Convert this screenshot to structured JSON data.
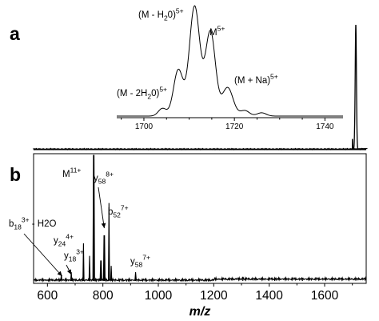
{
  "chart_data": [
    {
      "panel": "a",
      "type": "line",
      "xlim": [
        550,
        1750
      ],
      "peaks": [
        {
          "x": 1700,
          "height": 0.08,
          "width": 1.0
        },
        {
          "x": 1708,
          "height": 0.04,
          "width": 1.0
        },
        {
          "x": 1712.5,
          "height": 1.0,
          "width": 2.2
        }
      ],
      "inset": {
        "xlim": [
          1694,
          1744
        ],
        "xticks": [
          1700,
          1720,
          1740
        ],
        "peaks": [
          {
            "x": 1704.1,
            "height": 0.07,
            "width": 0.9
          },
          {
            "x": 1707.6,
            "height": 0.42,
            "width": 1.05
          },
          {
            "x": 1711.2,
            "height": 1.0,
            "width": 1.15
          },
          {
            "x": 1714.7,
            "height": 0.77,
            "width": 1.1
          },
          {
            "x": 1718.5,
            "height": 0.26,
            "width": 1.2
          },
          {
            "x": 1722.3,
            "height": 0.05,
            "width": 1.0
          },
          {
            "x": 1726.0,
            "height": 0.03,
            "width": 1.0
          }
        ],
        "annotations": [
          {
            "base": "(M - 2H",
            "sub": "2",
            "mid": "0)",
            "sup": "5+",
            "x": 1704.1
          },
          {
            "base": "(M - H",
            "sub": "2",
            "mid": "0)",
            "sup": "5+",
            "x": 1707.6
          },
          {
            "base": "M",
            "sub": "",
            "mid": "",
            "sup": "5+",
            "x": 1714.7
          },
          {
            "base": "(M + Na)",
            "sub": "",
            "mid": "",
            "sup": "5+",
            "x": 1718.5
          }
        ]
      }
    },
    {
      "panel": "b",
      "type": "line",
      "xlim": [
        550,
        1750
      ],
      "xticks": [
        600,
        800,
        1000,
        1200,
        1400,
        1600
      ],
      "xlabel": "m/z",
      "peaks": [
        {
          "x": 650,
          "height": 0.05
        },
        {
          "x": 686,
          "height": 0.07
        },
        {
          "x": 730,
          "height": 0.3
        },
        {
          "x": 752,
          "height": 0.2
        },
        {
          "x": 767,
          "height": 1.0
        },
        {
          "x": 793,
          "height": 0.16
        },
        {
          "x": 805,
          "height": 0.36
        },
        {
          "x": 822,
          "height": 0.62
        },
        {
          "x": 830,
          "height": 0.12
        },
        {
          "x": 918,
          "height": 0.07
        },
        {
          "x": 1305,
          "height": 0.03
        },
        {
          "x": 1420,
          "height": 0.025
        },
        {
          "x": 1520,
          "height": 0.02
        }
      ],
      "annotations": [
        {
          "base": "M",
          "sub": "",
          "sup": "11+",
          "suffix": ""
        },
        {
          "base": "y",
          "sub": "58",
          "sup": "8+",
          "suffix": ""
        },
        {
          "base": "b",
          "sub": "52",
          "sup": "7+",
          "suffix": ""
        },
        {
          "base": "b",
          "sub": "18",
          "sup": "3+",
          "suffix": "- H2O"
        },
        {
          "base": "y",
          "sub": "24",
          "sup": "4+",
          "suffix": ""
        },
        {
          "base": "y",
          "sub": "18",
          "sup": "3+",
          "suffix": ""
        },
        {
          "base": "y",
          "sub": "58",
          "sup": "7+",
          "suffix": ""
        }
      ]
    }
  ]
}
